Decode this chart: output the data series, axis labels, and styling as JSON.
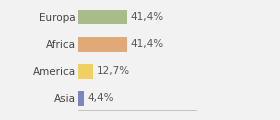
{
  "categories": [
    "Europa",
    "Africa",
    "America",
    "Asia"
  ],
  "values": [
    41.4,
    41.4,
    12.7,
    4.4
  ],
  "labels": [
    "41,4%",
    "41,4%",
    "12,7%",
    "4,4%"
  ],
  "bar_colors": [
    "#a8bc8a",
    "#e0aa78",
    "#f0d060",
    "#7b85c0"
  ],
  "background_color": "#f2f2f2",
  "xlim": [
    0,
    100
  ],
  "bar_height": 0.55,
  "label_fontsize": 7.5,
  "category_fontsize": 7.5
}
